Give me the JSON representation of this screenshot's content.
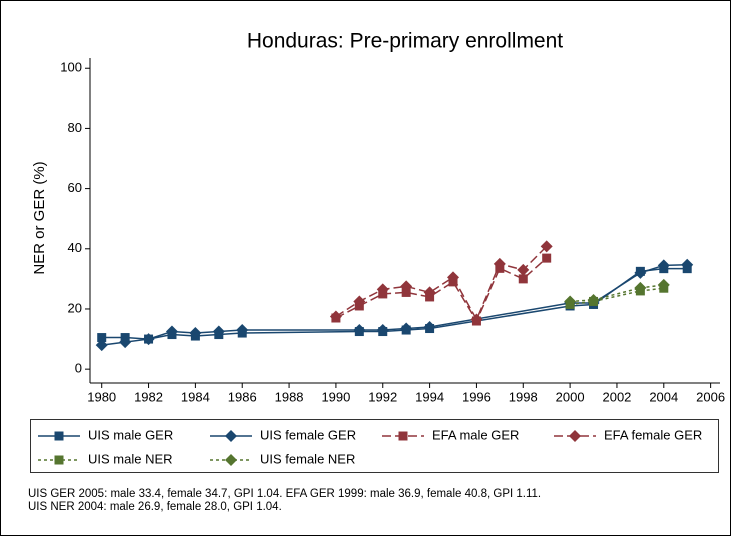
{
  "chart_data": {
    "type": "line",
    "title": "Honduras: Pre-primary enrollment",
    "y_label": "NER or GER (%)",
    "note": [
      "UIS GER 2005: male 33.4, female 34.7, GPI 1.04. EFA GER 1999: male 36.9, female 40.8, GPI 1.11.",
      "UIS NER 2004: male 26.9, female 28.0, GPI 1.04."
    ],
    "xlim": [
      1979.5,
      2006.4
    ],
    "xticks": [
      1980,
      1982,
      1984,
      1986,
      1988,
      1990,
      1992,
      1994,
      1996,
      1998,
      2000,
      2002,
      2004,
      2006
    ],
    "ylim": [
      -4.6,
      103.4
    ],
    "yticks": [
      0,
      20,
      40,
      60,
      80,
      100
    ],
    "grid": false,
    "series": [
      {
        "name": "UIS male GER",
        "color": "#1a476f",
        "marker": "square",
        "dash": "solid",
        "x": [
          1980,
          1981,
          1982,
          1983,
          1984,
          1985,
          1986,
          1991,
          1992,
          1993,
          1994,
          2000,
          2001,
          2003,
          2004,
          2005
        ],
        "values": [
          10.5,
          10.5,
          10,
          11.5,
          11,
          11.5,
          12,
          12.5,
          12.5,
          13,
          13.5,
          21,
          21.5,
          32.5,
          33.4,
          33.4
        ]
      },
      {
        "name": "UIS female GER",
        "color": "#1a476f",
        "marker": "diamond",
        "dash": "solid",
        "x": [
          1980,
          1981,
          1982,
          1983,
          1984,
          1985,
          1986,
          1991,
          1992,
          1993,
          1994,
          2000,
          2001,
          2003,
          2004,
          2005
        ],
        "values": [
          8,
          9,
          10,
          12.5,
          12,
          12.5,
          13,
          13,
          13,
          13.5,
          14,
          22,
          22,
          32,
          34.5,
          34.7
        ]
      },
      {
        "name": "EFA male GER",
        "color": "#90353b",
        "marker": "square",
        "dash": "longdash",
        "x": [
          1990,
          1991,
          1992,
          1993,
          1994,
          1995,
          1996,
          1997,
          1998,
          1999
        ],
        "values": [
          17,
          21,
          25,
          25.5,
          24,
          29,
          16,
          33.5,
          30,
          36.9
        ]
      },
      {
        "name": "EFA female GER",
        "color": "#90353b",
        "marker": "diamond",
        "dash": "longdash",
        "x": [
          1990,
          1991,
          1992,
          1993,
          1994,
          1995,
          1996,
          1997,
          1998,
          1999
        ],
        "values": [
          17.5,
          22.5,
          26.5,
          27.5,
          25.5,
          30.5,
          16.5,
          35,
          33,
          40.8
        ]
      },
      {
        "name": "UIS male NER",
        "color": "#55752f",
        "marker": "square",
        "dash": "shortdash",
        "x": [
          2000,
          2001,
          2003,
          2004
        ],
        "values": [
          21.5,
          22.5,
          26,
          26.9
        ]
      },
      {
        "name": "UIS female NER",
        "color": "#55752f",
        "marker": "diamond",
        "dash": "shortdash",
        "x": [
          2000,
          2001,
          2003,
          2004
        ],
        "values": [
          22.5,
          23,
          27,
          28.0
        ]
      }
    ]
  }
}
